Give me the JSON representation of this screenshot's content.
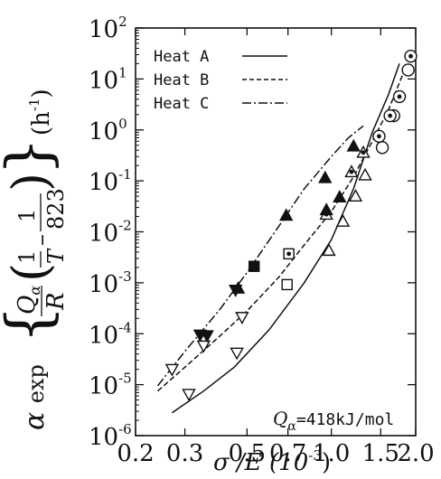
{
  "chart_data": {
    "type": "scatter",
    "x_scale": "log",
    "y_scale": "log",
    "xlim": [
      0.2,
      2.0
    ],
    "ylim": [
      1e-06,
      100
    ],
    "x_tick_labels": [
      "0.2",
      "0.3",
      "0.5",
      "0.7",
      "1.0",
      "1.5",
      "2.0"
    ],
    "x_tick_values": [
      0.2,
      0.3,
      0.5,
      0.7,
      1.0,
      1.5,
      2.0
    ],
    "y_tick_values": [
      1e-06,
      1e-05,
      0.0001,
      0.001,
      0.01,
      0.1,
      1,
      10,
      100
    ],
    "y_tick_labels": [
      {
        "base": "10",
        "exp": "-6"
      },
      {
        "base": "10",
        "exp": "-5"
      },
      {
        "base": "10",
        "exp": "-4"
      },
      {
        "base": "10",
        "exp": "-3"
      },
      {
        "base": "10",
        "exp": "-2"
      },
      {
        "base": "10",
        "exp": "-1"
      },
      {
        "base": "10",
        "exp": "0"
      },
      {
        "base": "10",
        "exp": "1"
      },
      {
        "base": "10",
        "exp": "2"
      }
    ],
    "xlabel": {
      "main": "σ /E (10",
      "exp": "-3",
      "close": ")"
    },
    "ylabel": {
      "alpha": "α",
      "exp": "exp",
      "q": "Q",
      "qsub": "α",
      "r": "R",
      "one": "1",
      "t": "T",
      "num": "823",
      "unit": "(h",
      "unit_exp": "-1",
      "unit_close": ")"
    },
    "annotation": {
      "q": "Q",
      "sub": "α",
      "value": "=418kJ/mol"
    },
    "legend_position": "top-left",
    "grid": false,
    "series": [
      {
        "name": "Heat A",
        "line_style": "solid",
        "curve": [
          [
            0.27,
            2.8e-06
          ],
          [
            0.35,
            7.5e-06
          ],
          [
            0.45,
            2.2e-05
          ],
          [
            0.6,
            0.00012
          ],
          [
            0.8,
            0.001
          ],
          [
            1.0,
            0.007
          ],
          [
            1.2,
            0.07
          ],
          [
            1.4,
            0.9
          ],
          [
            1.6,
            5
          ],
          [
            1.75,
            20
          ]
        ],
        "points": [
          {
            "x": 0.31,
            "y": 6.5e-06,
            "marker": "triangle-down-open"
          },
          {
            "x": 0.46,
            "y": 4.2e-05,
            "marker": "triangle-down-open"
          },
          {
            "x": 0.695,
            "y": 0.00092,
            "marker": "square-open"
          },
          {
            "x": 0.98,
            "y": 0.0043,
            "marker": "triangle-up-open"
          },
          {
            "x": 1.1,
            "y": 0.016,
            "marker": "triangle-up-open"
          },
          {
            "x": 1.22,
            "y": 0.05,
            "marker": "triangle-up-open"
          },
          {
            "x": 1.32,
            "y": 0.13,
            "marker": "triangle-up-open"
          },
          {
            "x": 1.52,
            "y": 0.45,
            "marker": "circle-open"
          },
          {
            "x": 1.67,
            "y": 1.9,
            "marker": "circle-open"
          },
          {
            "x": 1.88,
            "y": 15,
            "marker": "circle-open"
          }
        ]
      },
      {
        "name": "Heat B",
        "line_style": "dashed",
        "curve": [
          [
            0.24,
            7.5e-06
          ],
          [
            0.3,
            2.2e-05
          ],
          [
            0.4,
            9e-05
          ],
          [
            0.5,
            0.00028
          ],
          [
            0.65,
            0.0013
          ],
          [
            0.8,
            0.0055
          ],
          [
            1.0,
            0.025
          ],
          [
            1.2,
            0.12
          ],
          [
            1.4,
            0.6
          ],
          [
            1.6,
            2.5
          ],
          [
            1.85,
            18
          ]
        ],
        "points": [
          {
            "x": 0.27,
            "y": 2e-05,
            "marker": "triangle-down-open"
          },
          {
            "x": 0.35,
            "y": 5.8e-05,
            "marker": "triangle-down-open"
          },
          {
            "x": 0.48,
            "y": 0.00021,
            "marker": "triangle-down-open"
          },
          {
            "x": 0.705,
            "y": 0.0037,
            "marker": "square-dot"
          },
          {
            "x": 0.96,
            "y": 0.022,
            "marker": "triangle-up-dot"
          },
          {
            "x": 1.18,
            "y": 0.15,
            "marker": "triangle-up-dot"
          },
          {
            "x": 1.3,
            "y": 0.36,
            "marker": "triangle-up-dot"
          },
          {
            "x": 1.48,
            "y": 0.75,
            "marker": "circle-dot"
          },
          {
            "x": 1.62,
            "y": 1.9,
            "marker": "circle-dot"
          },
          {
            "x": 1.75,
            "y": 4.5,
            "marker": "circle-dot"
          },
          {
            "x": 1.92,
            "y": 28,
            "marker": "circle-dot"
          }
        ]
      },
      {
        "name": "Heat C",
        "line_style": "dashdot",
        "curve": [
          [
            0.24,
            9.5e-06
          ],
          [
            0.3,
            4.5e-05
          ],
          [
            0.4,
            0.0003
          ],
          [
            0.5,
            0.0016
          ],
          [
            0.65,
            0.013
          ],
          [
            0.8,
            0.07
          ],
          [
            1.0,
            0.3
          ],
          [
            1.15,
            0.7
          ],
          [
            1.3,
            1.2
          ]
        ],
        "points": [
          {
            "x": 0.34,
            "y": 9.5e-05,
            "marker": "triangle-down-filled"
          },
          {
            "x": 0.36,
            "y": 9.2e-05,
            "marker": "triangle-down-filled"
          },
          {
            "x": 0.455,
            "y": 0.00072,
            "marker": "triangle-down-filled"
          },
          {
            "x": 0.465,
            "y": 0.00078,
            "marker": "triangle-up-filled"
          },
          {
            "x": 0.53,
            "y": 0.0021,
            "marker": "square-filled"
          },
          {
            "x": 0.69,
            "y": 0.021,
            "marker": "triangle-up-filled"
          },
          {
            "x": 0.96,
            "y": 0.027,
            "marker": "triangle-up-filled"
          },
          {
            "x": 0.95,
            "y": 0.115,
            "marker": "triangle-up-filled"
          },
          {
            "x": 1.07,
            "y": 0.048,
            "marker": "triangle-up-filled"
          },
          {
            "x": 1.2,
            "y": 0.48,
            "marker": "triangle-up-filled"
          }
        ]
      }
    ]
  }
}
